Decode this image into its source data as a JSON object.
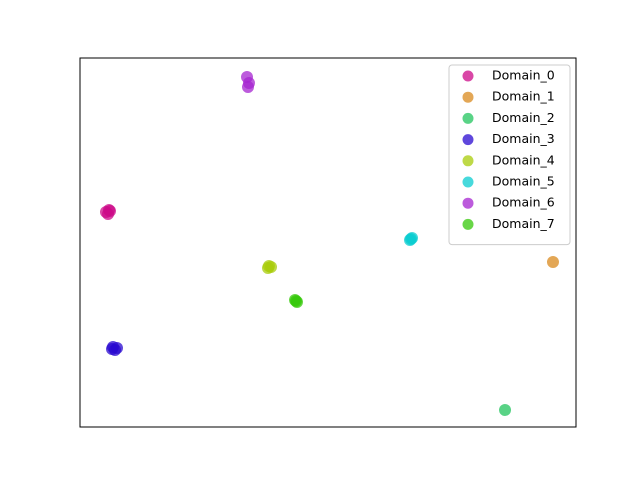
{
  "chart_data": {
    "type": "scatter",
    "legend": "upper right",
    "xlim": [
      0,
      100
    ],
    "ylim": [
      0,
      100
    ],
    "series": [
      {
        "name": "Domain_0",
        "color": "#cc0a88",
        "x": [
          5.24,
          6.05,
          5.65,
          5.85
        ],
        "y": [
          58.27,
          58.54,
          57.72,
          58.81
        ]
      },
      {
        "name": "Domain_1",
        "color": "#d98a1e",
        "x": [
          95.36
        ],
        "y": [
          44.72
        ]
      },
      {
        "name": "Domain_2",
        "color": "#21c45e",
        "x": [
          85.69
        ],
        "y": [
          4.61
        ]
      },
      {
        "name": "Domain_3",
        "color": "#2a0ad0",
        "x": [
          6.45,
          7.46,
          7.06,
          6.65
        ],
        "y": [
          21.14,
          21.41,
          20.87,
          21.68
        ]
      },
      {
        "name": "Domain_4",
        "color": "#a8cc0a",
        "x": [
          38.1,
          38.51,
          37.9
        ],
        "y": [
          43.63,
          43.36,
          43.09
        ]
      },
      {
        "name": "Domain_5",
        "color": "#0accd0",
        "x": [
          66.73,
          66.53,
          66.94
        ],
        "y": [
          50.95,
          50.68,
          51.22
        ]
      },
      {
        "name": "Domain_6",
        "color": "#a624d0",
        "x": [
          33.67,
          34.07,
          33.87
        ],
        "y": [
          94.85,
          93.22,
          92.14
        ]
      },
      {
        "name": "Domain_7",
        "color": "#36c80a",
        "x": [
          43.55,
          43.75,
          43.35
        ],
        "y": [
          34.15,
          33.88,
          34.42
        ]
      }
    ]
  }
}
